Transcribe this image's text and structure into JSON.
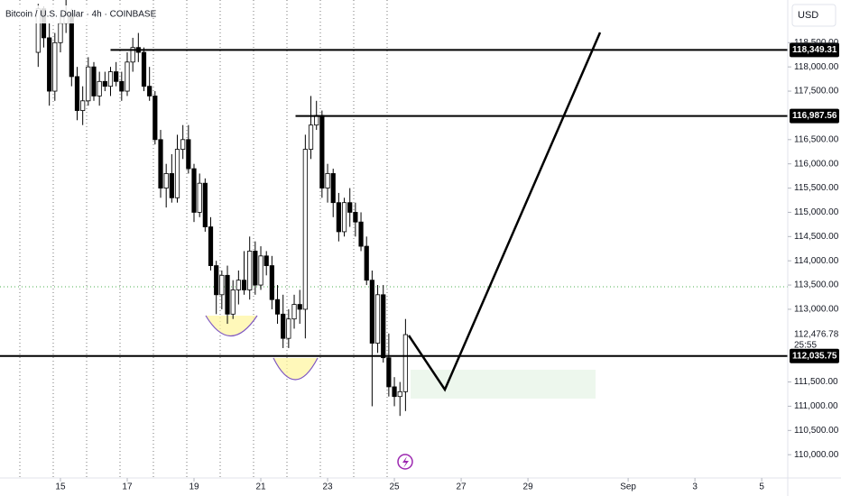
{
  "chart_data": {
    "type": "candlestick",
    "title": "Bitcoin / U.S. Dollar · 4h · COINBASE",
    "currency": "USD",
    "x": [
      14.333,
      14.5,
      14.667,
      14.833,
      15,
      15.167,
      15.333,
      15.5,
      15.667,
      15.833,
      16,
      16.167,
      16.333,
      16.5,
      16.667,
      16.833,
      17,
      17.167,
      17.333,
      17.5,
      17.667,
      17.833,
      18,
      18.167,
      18.333,
      18.5,
      18.667,
      18.833,
      19,
      19.167,
      19.333,
      19.5,
      19.667,
      19.833,
      20,
      20.167,
      20.333,
      20.5,
      20.667,
      20.833,
      21,
      21.167,
      21.333,
      21.5,
      21.667,
      21.833,
      22,
      22.167,
      22.333,
      22.5,
      22.667,
      22.833,
      23,
      23.167,
      23.333,
      23.5,
      23.667,
      23.833,
      24,
      24.167,
      24.333,
      24.5,
      24.667,
      24.833,
      25,
      25.167,
      25.333
    ],
    "open": [
      118300,
      119200,
      118600,
      117500,
      118500,
      118900,
      119100,
      117800,
      117100,
      117300,
      118000,
      117400,
      117700,
      117600,
      117900,
      117700,
      117500,
      118100,
      118400,
      118300,
      117600,
      117400,
      116500,
      115500,
      115800,
      115300,
      116300,
      116500,
      115900,
      115000,
      115600,
      114700,
      113900,
      113300,
      113700,
      112900,
      113400,
      113600,
      113400,
      114200,
      113500,
      114100,
      113900,
      113200,
      112900,
      112400,
      112800,
      113100,
      113000,
      116300,
      116800,
      117000,
      115500,
      115800,
      115200,
      114600,
      115200,
      115000,
      114800,
      114300,
      113600,
      112300,
      113300,
      112000,
      111400,
      111200,
      111300
    ],
    "high": [
      119300,
      119250,
      118900,
      118700,
      119100,
      119400,
      119200,
      118000,
      117600,
      118200,
      118100,
      117900,
      117900,
      118000,
      118100,
      117900,
      118300,
      118600,
      118700,
      118400,
      118000,
      117500,
      116700,
      116000,
      116200,
      116600,
      116800,
      116800,
      116000,
      115800,
      115700,
      114900,
      114000,
      113800,
      113900,
      113600,
      113800,
      114200,
      114500,
      114400,
      114300,
      114200,
      114100,
      113500,
      113300,
      113000,
      113300,
      113400,
      116600,
      117400,
      117300,
      117100,
      116000,
      115900,
      115400,
      115300,
      115500,
      115200,
      115000,
      114500,
      113800,
      113500,
      113500,
      112500,
      111600,
      111500,
      112800
    ],
    "low": [
      118000,
      118400,
      117200,
      117300,
      118300,
      118700,
      117600,
      116900,
      116800,
      117200,
      117300,
      117200,
      117500,
      117400,
      117600,
      117300,
      117400,
      117900,
      118100,
      117500,
      117300,
      116400,
      115300,
      115100,
      115200,
      115200,
      116100,
      115800,
      114800,
      114900,
      114600,
      113800,
      112900,
      113000,
      112700,
      112800,
      113100,
      113300,
      113200,
      113300,
      113400,
      113700,
      113000,
      112700,
      112200,
      112200,
      112600,
      112700,
      112400,
      116100,
      116700,
      115300,
      115200,
      114900,
      114400,
      114500,
      114700,
      114500,
      114200,
      113500,
      111000,
      112100,
      111900,
      111200,
      111000,
      110800,
      110900
    ],
    "close": [
      119200,
      118600,
      117500,
      118500,
      118900,
      119100,
      117800,
      117100,
      117300,
      118000,
      117400,
      117700,
      117600,
      117900,
      117700,
      117500,
      118100,
      118400,
      118300,
      117600,
      117400,
      116500,
      115500,
      115800,
      115300,
      116300,
      116500,
      115900,
      115000,
      115600,
      114700,
      113900,
      113300,
      113700,
      112900,
      113400,
      113600,
      113400,
      114200,
      113500,
      114100,
      113900,
      113200,
      112900,
      112400,
      112800,
      113100,
      113000,
      116300,
      116800,
      117000,
      115500,
      115800,
      115200,
      114600,
      115200,
      115000,
      114800,
      114300,
      113600,
      112300,
      113300,
      112000,
      111400,
      111200,
      111300,
      112476.78
    ],
    "up_color": "#ffffff",
    "down_color": "#000000",
    "xlim": [
      13.19,
      36.78
    ],
    "ylim": [
      109520,
      119380
    ],
    "xticks": [
      15,
      17,
      19,
      21,
      23,
      25,
      27,
      29,
      {
        "value": 32,
        "label": "Sep"
      },
      {
        "value": 34,
        "label": "3"
      },
      {
        "value": 36,
        "label": "5"
      }
    ],
    "yticks": [
      {
        "value": 110000,
        "label": "110,000.00"
      },
      {
        "value": 110500,
        "label": "110,500.00"
      },
      {
        "value": 111000,
        "label": "111,000.00"
      },
      {
        "value": 111500,
        "label": "111,500.00"
      },
      {
        "value": 113000,
        "label": "113,000.00"
      },
      {
        "value": 113500,
        "label": "113,500.00"
      },
      {
        "value": 114000,
        "label": "114,000.00"
      },
      {
        "value": 114500,
        "label": "114,500.00"
      },
      {
        "value": 115000,
        "label": "115,000.00"
      },
      {
        "value": 115500,
        "label": "115,500.00"
      },
      {
        "value": 116000,
        "label": "116,000.00"
      },
      {
        "value": 116500,
        "label": "116,500.00"
      },
      {
        "value": 117500,
        "label": "117,500.00"
      },
      {
        "value": 118000,
        "label": "118,000.00"
      },
      {
        "value": 118500,
        "label": "118,500.00"
      }
    ],
    "levels": [
      {
        "value": 118349.31,
        "label": "118,349.31",
        "start": 16.5
      },
      {
        "value": 116987.56,
        "label": "116,987.56",
        "start": 22.04
      },
      {
        "value": 112035.75,
        "label": "112,035.75",
        "start": 13.19
      }
    ],
    "last_price": {
      "value": 112476.78,
      "label": "112,476.78"
    },
    "countdown": "25:55"
  }
}
